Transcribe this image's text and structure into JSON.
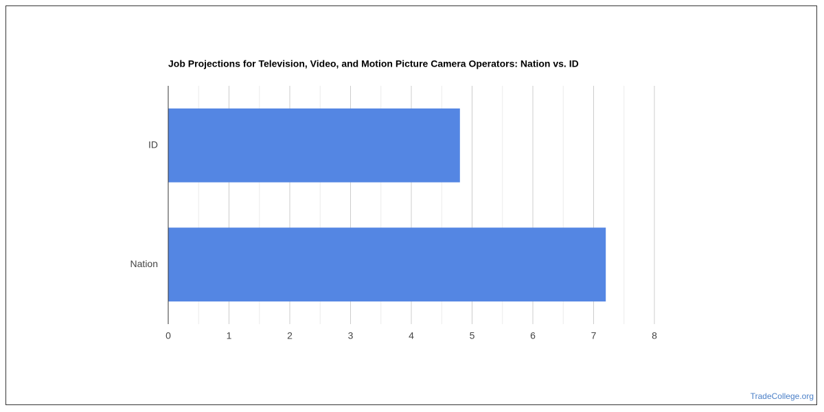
{
  "chart_data": {
    "type": "bar",
    "orientation": "horizontal",
    "title": "Job Projections for Television, Video, and Motion Picture Camera Operators: Nation vs. ID",
    "categories": [
      "ID",
      "Nation"
    ],
    "values": [
      4.8,
      7.2
    ],
    "color": "#5486e3",
    "xlim": [
      0,
      8
    ],
    "xticks": [
      0,
      1,
      2,
      3,
      4,
      5,
      6,
      7,
      8
    ],
    "grid": true
  },
  "footer": {
    "text": "TradeCollege.org"
  }
}
